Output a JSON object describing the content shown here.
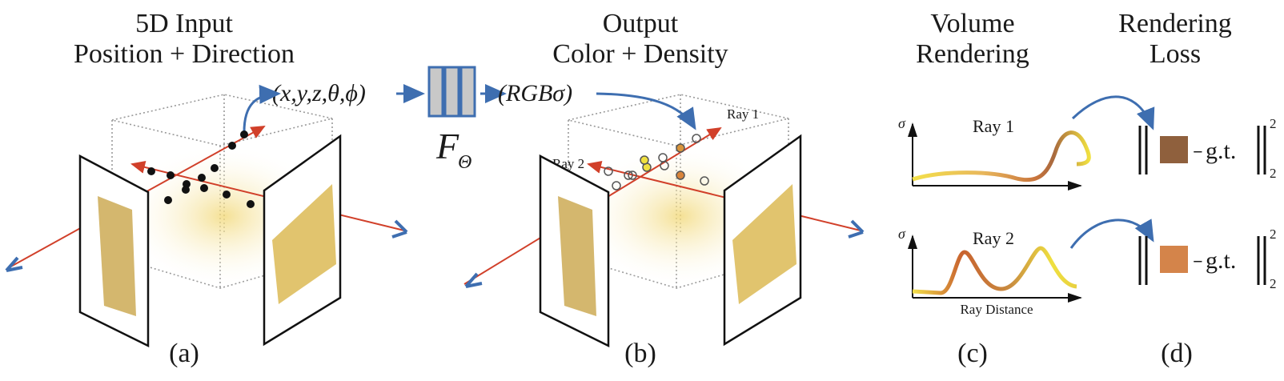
{
  "panels": {
    "a": {
      "title_line1": "5D Input",
      "title_line2": "Position + Direction",
      "label": "(a)"
    },
    "b": {
      "title_line1": "Output",
      "title_line2": "Color + Density",
      "label": "(b)",
      "ray1_label": "Ray 1",
      "ray2_label": "Ray 2"
    },
    "c": {
      "title_line1": "Volume",
      "title_line2": "Rendering",
      "label": "(c)",
      "plot1_title": "Ray 1",
      "plot2_title": "Ray 2",
      "y_axis_label": "σ",
      "x_axis_label": "Ray Distance"
    },
    "d": {
      "title_line1": "Rendering",
      "title_line2": "Loss",
      "label": "(d)",
      "gt_label": "g.t.",
      "minus": "−",
      "norm_exponent": "2",
      "norm_subscript": "2"
    }
  },
  "pipeline": {
    "input_tuple": "(x,y,z,θ,ϕ)",
    "network_label": "F",
    "network_subscript": "Θ",
    "output_tuple": "(RGBσ)"
  },
  "colors": {
    "ray": "#d1402a",
    "arrow_blue": "#3e6eb0",
    "network_fill": "#c8c8c8",
    "ray1_color": "#8f603d",
    "ray2_color": "#d4844a",
    "curve_yellow": "#f0e040",
    "curve_orange": "#c8703a"
  }
}
